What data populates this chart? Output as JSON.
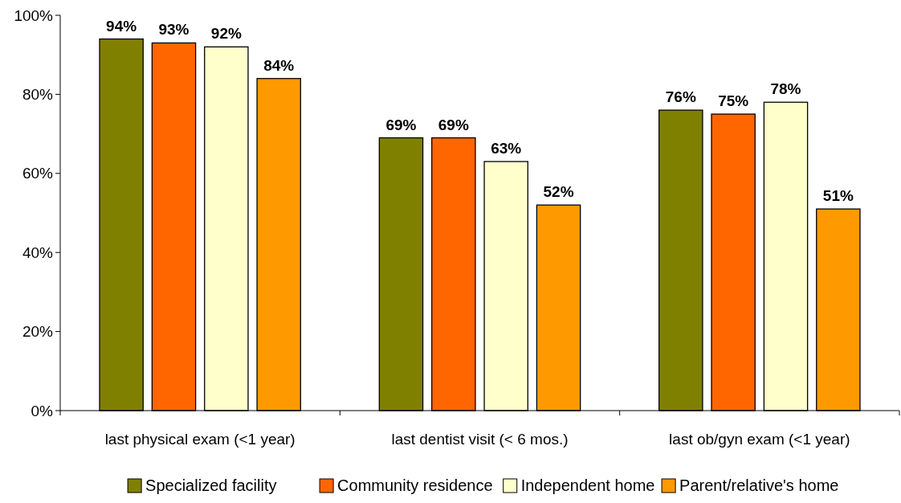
{
  "chart_data": {
    "type": "bar",
    "categories": [
      "last physical exam (<1 year)",
      "last dentist visit (< 6 mos.)",
      "last ob/gyn exam (<1 year)"
    ],
    "series": [
      {
        "name": "Specialized facility",
        "color": "#808000",
        "values": [
          94,
          69,
          76
        ],
        "value_labels": [
          "94%",
          "69%",
          "76%"
        ]
      },
      {
        "name": "Community residence",
        "color": "#ff6600",
        "values": [
          93,
          69,
          75
        ],
        "value_labels": [
          "93%",
          "69%",
          "75%"
        ]
      },
      {
        "name": "Independent home",
        "color": "#ffffcc",
        "values": [
          92,
          63,
          78
        ],
        "value_labels": [
          "92%",
          "63%",
          "78%"
        ]
      },
      {
        "name": "Parent/relative's home",
        "color": "#ff9900",
        "values": [
          84,
          52,
          51
        ],
        "value_labels": [
          "84%",
          "52%",
          "51%"
        ]
      }
    ],
    "ylim": [
      0,
      100
    ],
    "yticks": [
      {
        "value": 0,
        "label": "0%"
      },
      {
        "value": 20,
        "label": "20%"
      },
      {
        "value": 40,
        "label": "40%"
      },
      {
        "value": 60,
        "label": "60%"
      },
      {
        "value": 80,
        "label": "80%"
      },
      {
        "value": 100,
        "label": "100%"
      }
    ],
    "grid": false,
    "legend": "bottom"
  }
}
